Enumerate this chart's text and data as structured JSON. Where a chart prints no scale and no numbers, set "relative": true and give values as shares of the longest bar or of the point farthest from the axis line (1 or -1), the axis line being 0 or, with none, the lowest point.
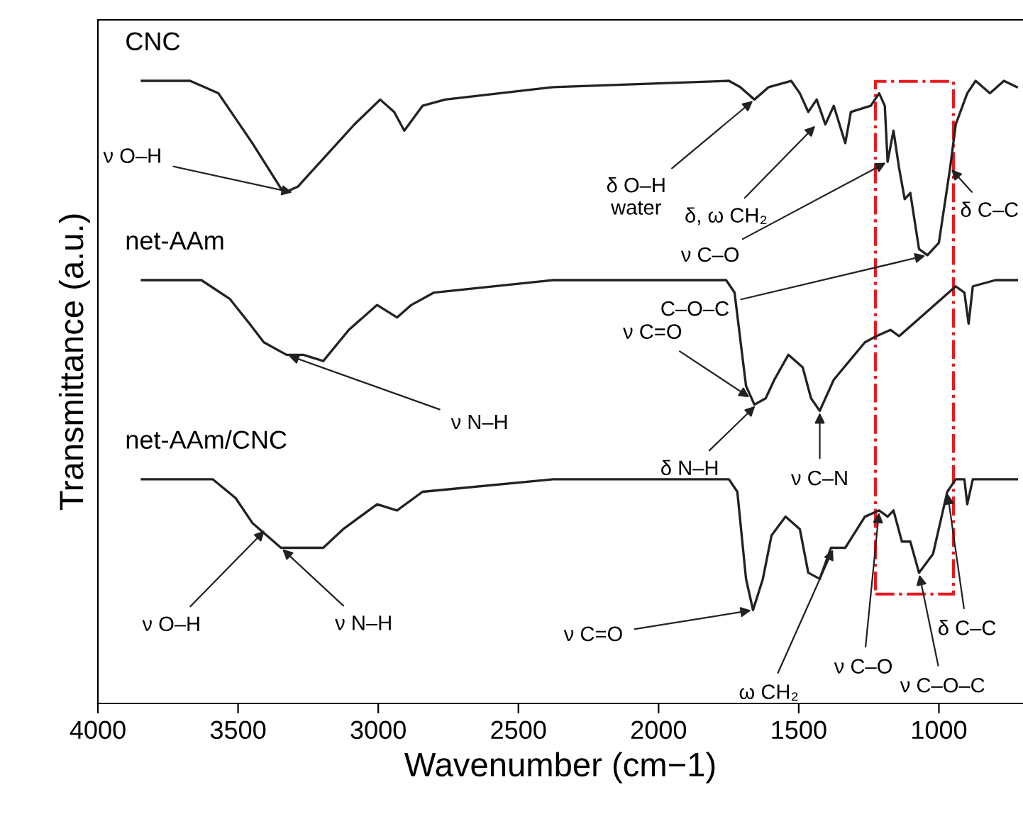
{
  "chart_data": {
    "type": "line",
    "relative": true,
    "xlabel": "Wavenumber (cm−1)",
    "ylabel": "Transmittance (a.u.)",
    "xlim": [
      4000,
      700
    ],
    "xticks": [
      4000,
      3500,
      3000,
      2500,
      2000,
      1500,
      1000
    ],
    "grid": false,
    "marker": "none",
    "line_style": "solid",
    "tick_labels": "x",
    "series": [
      {
        "name": "CNC",
        "color": "#222222",
        "x": [
          3843,
          3671,
          3570,
          3449,
          3337,
          3287,
          3186,
          3085,
          2993,
          2943,
          2907,
          2842,
          2761,
          2376,
          1749,
          1709,
          1658,
          1607,
          1527,
          1496,
          1466,
          1436,
          1405,
          1375,
          1334,
          1314,
          1243,
          1213,
          1193,
          1183,
          1162,
          1142,
          1122,
          1102,
          1071,
          1041,
          1000,
          960,
          940,
          899,
          869,
          818,
          768,
          722
        ],
        "values": [
          1.0,
          1.0,
          0.98,
          0.9,
          0.82,
          0.83,
          0.88,
          0.93,
          0.97,
          0.95,
          0.92,
          0.96,
          0.97,
          0.99,
          1.0,
          0.99,
          0.97,
          0.99,
          1.0,
          0.98,
          0.95,
          0.97,
          0.93,
          0.96,
          0.9,
          0.95,
          0.96,
          0.98,
          0.96,
          0.87,
          0.92,
          0.86,
          0.81,
          0.82,
          0.73,
          0.72,
          0.74,
          0.86,
          0.93,
          0.98,
          1.0,
          0.98,
          1.0,
          0.99
        ]
      },
      {
        "name": "net-AAm",
        "color": "#222222",
        "x": [
          3843,
          3631,
          3530,
          3459,
          3408,
          3327,
          3267,
          3196,
          3105,
          3004,
          2933,
          2882,
          2801,
          2376,
          1759,
          1729,
          1688,
          1658,
          1618,
          1587,
          1537,
          1486,
          1456,
          1425,
          1375,
          1264,
          1223,
          1173,
          1142,
          1041,
          940,
          909,
          894,
          879,
          798,
          722
        ],
        "values": [
          0.68,
          0.68,
          0.65,
          0.61,
          0.58,
          0.56,
          0.56,
          0.55,
          0.6,
          0.64,
          0.62,
          0.64,
          0.66,
          0.68,
          0.68,
          0.66,
          0.51,
          0.48,
          0.49,
          0.52,
          0.56,
          0.54,
          0.49,
          0.47,
          0.52,
          0.58,
          0.59,
          0.6,
          0.59,
          0.63,
          0.67,
          0.66,
          0.61,
          0.67,
          0.68,
          0.68
        ]
      },
      {
        "name": "net-AAm/CNC",
        "color": "#222222",
        "x": [
          3843,
          3590,
          3509,
          3449,
          3347,
          3267,
          3196,
          3125,
          3004,
          2933,
          2842,
          2376,
          1749,
          1719,
          1688,
          1663,
          1628,
          1597,
          1547,
          1496,
          1466,
          1425,
          1385,
          1334,
          1264,
          1213,
          1183,
          1162,
          1132,
          1102,
          1071,
          1021,
          970,
          940,
          909,
          899,
          879,
          722
        ],
        "values": [
          0.36,
          0.36,
          0.33,
          0.29,
          0.25,
          0.25,
          0.25,
          0.28,
          0.32,
          0.31,
          0.34,
          0.36,
          0.36,
          0.34,
          0.2,
          0.15,
          0.2,
          0.27,
          0.3,
          0.28,
          0.21,
          0.2,
          0.25,
          0.25,
          0.3,
          0.31,
          0.3,
          0.31,
          0.26,
          0.26,
          0.21,
          0.24,
          0.34,
          0.36,
          0.36,
          0.32,
          0.36,
          0.36
        ]
      }
    ],
    "annotations": [
      {
        "text": "ν O–H",
        "x": 3300,
        "y": 0.82
      },
      {
        "text": "δ O–H\nwater",
        "x": 1658,
        "y": 0.97
      },
      {
        "text": "δ, ω CH₂",
        "x": 1436,
        "y": 0.93
      },
      {
        "text": "ν C–O",
        "x": 1183,
        "y": 0.87
      },
      {
        "text": "C–O–C",
        "x": 1041,
        "y": 0.72
      },
      {
        "text": "δ C–C",
        "x": 960,
        "y": 0.86
      },
      {
        "text": "ν N–H",
        "x": 3327,
        "y": 0.56
      },
      {
        "text": "ν C=O",
        "x": 1670,
        "y": 0.49
      },
      {
        "text": "δ N–H",
        "x": 1650,
        "y": 0.48
      },
      {
        "text": "ν C–N",
        "x": 1425,
        "y": 0.47
      },
      {
        "text": "ν O–H",
        "x": 3400,
        "y": 0.28
      },
      {
        "text": "ν N–H",
        "x": 3347,
        "y": 0.25
      },
      {
        "text": "ν C=O",
        "x": 1663,
        "y": 0.15
      },
      {
        "text": "ω CH₂",
        "x": 1375,
        "y": 0.25
      },
      {
        "text": "ν C–O",
        "x": 1213,
        "y": 0.31
      },
      {
        "text": "ν C–O–C",
        "x": 1071,
        "y": 0.21
      },
      {
        "text": "δ C–C",
        "x": 970,
        "y": 0.34
      }
    ]
  }
}
